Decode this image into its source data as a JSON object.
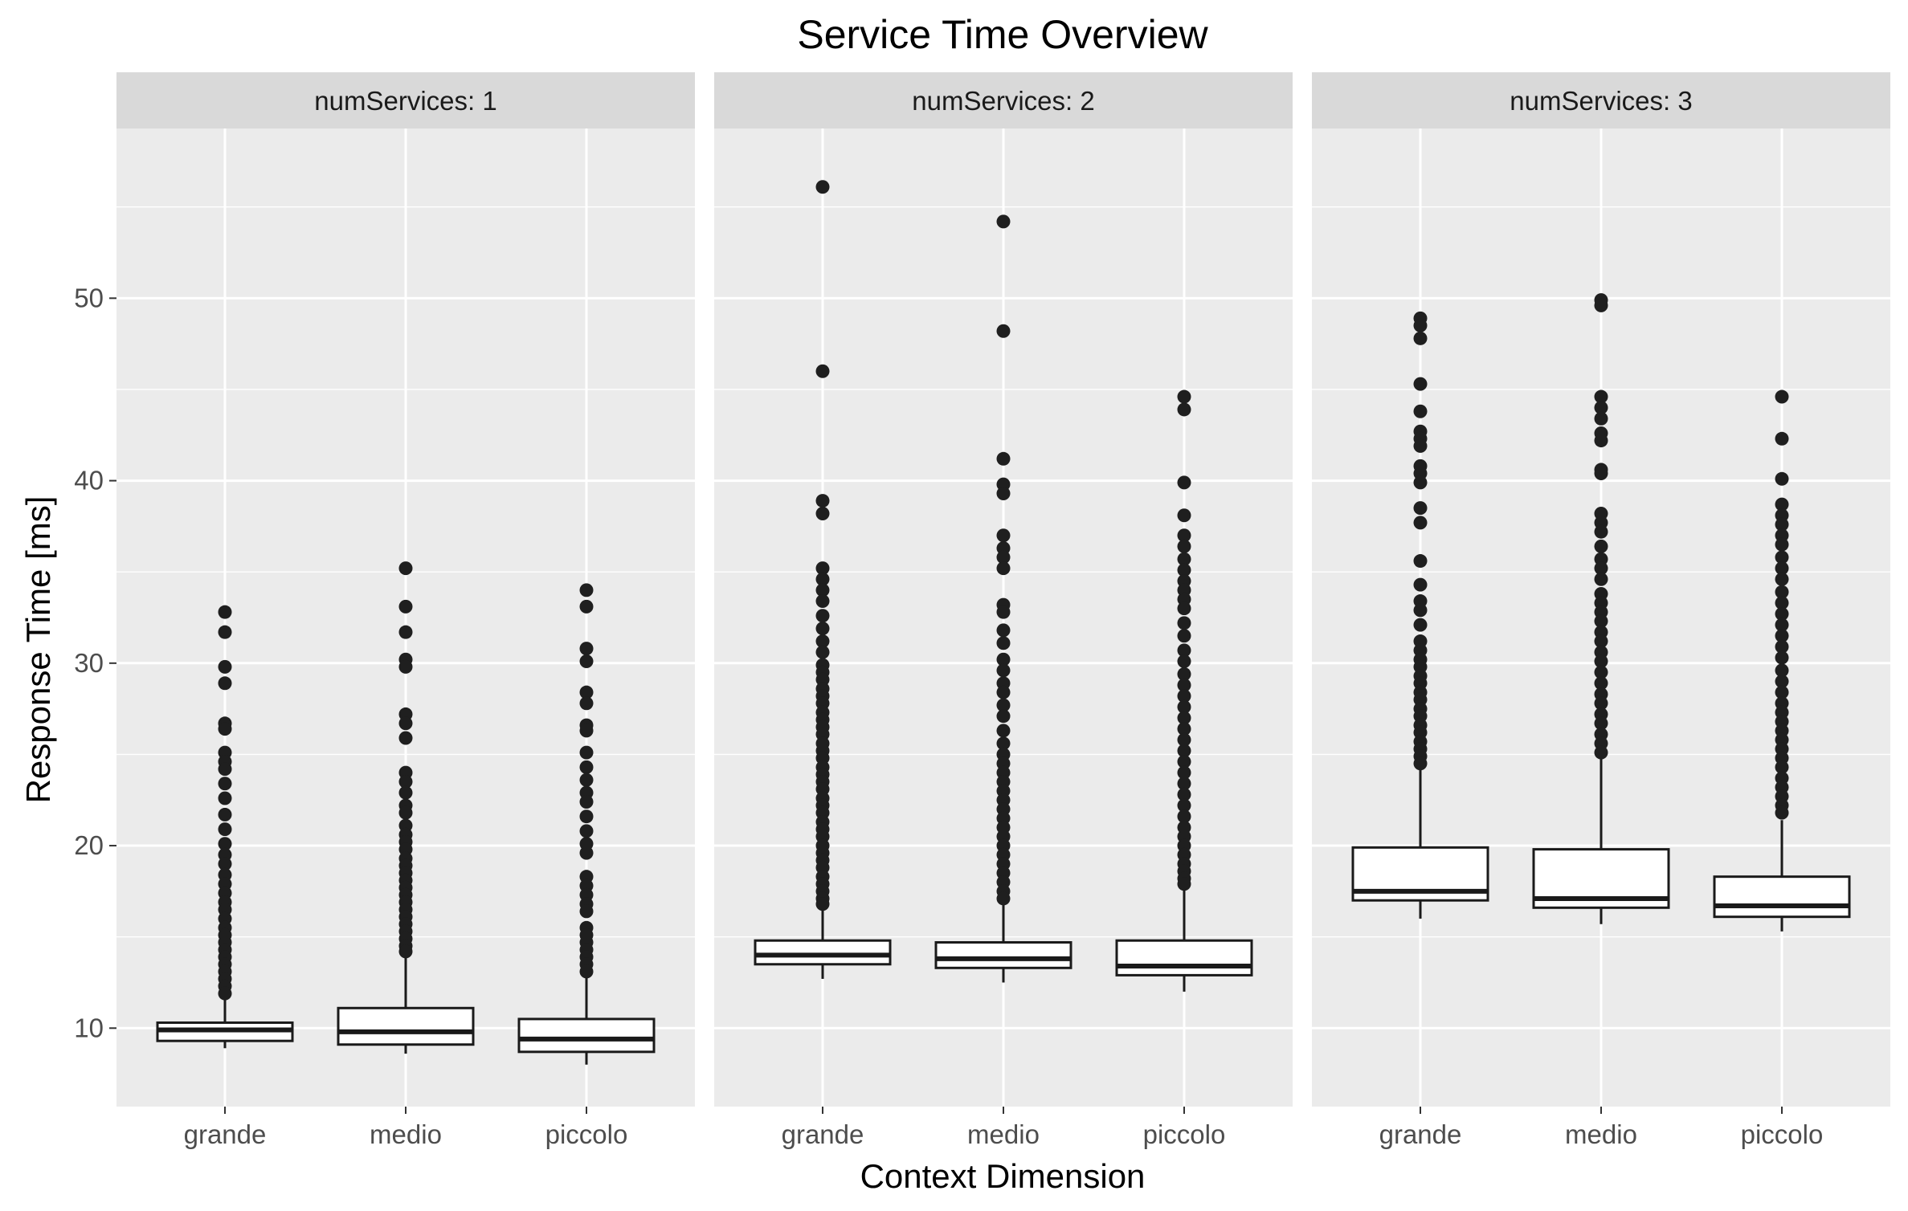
{
  "chart_data": {
    "type": "boxplot",
    "title": "Service Time Overview",
    "xlabel": "Context Dimension",
    "ylabel": "Response Time [ms]",
    "ylim": [
      5.7,
      59.3
    ],
    "yticks": [
      10,
      20,
      30,
      40,
      50
    ],
    "grid": true,
    "facet_label_prefix": "numServices: ",
    "categories": [
      "grande",
      "medio",
      "piccolo"
    ],
    "panels": [
      {
        "facet": "1",
        "boxes": [
          {
            "category": "grande",
            "whisker_low": 8.9,
            "q1": 9.3,
            "median": 9.9,
            "q3": 10.3,
            "whisker_high": 11.7,
            "outliers": [
              32.8,
              31.7,
              29.8,
              28.9,
              26.7,
              26.4,
              25.1,
              24.6,
              24.2,
              23.4,
              22.6,
              21.7,
              20.9,
              20.1,
              19.5,
              19.0,
              18.4,
              17.9,
              17.4,
              16.9,
              16.5,
              16.0,
              15.5,
              15.1,
              14.7,
              14.3,
              13.9,
              13.5,
              13.1,
              12.7,
              12.3,
              11.9
            ]
          },
          {
            "category": "medio",
            "whisker_low": 8.6,
            "q1": 9.1,
            "median": 9.8,
            "q3": 11.1,
            "whisker_high": 14.0,
            "outliers": [
              35.2,
              33.1,
              31.7,
              30.2,
              29.8,
              27.2,
              26.7,
              25.9,
              24.0,
              23.5,
              22.9,
              22.2,
              21.8,
              21.1,
              20.6,
              20.2,
              19.8,
              19.3,
              18.9,
              18.5,
              18.1,
              17.7,
              17.3,
              16.9,
              16.5,
              16.1,
              15.7,
              15.3,
              14.9,
              14.5,
              14.2
            ]
          },
          {
            "category": "piccolo",
            "whisker_low": 8.0,
            "q1": 8.7,
            "median": 9.4,
            "q3": 10.5,
            "whisker_high": 13.0,
            "outliers": [
              34.0,
              33.1,
              30.8,
              30.1,
              28.4,
              27.8,
              26.6,
              26.3,
              25.1,
              24.3,
              23.6,
              22.9,
              22.4,
              21.6,
              20.8,
              20.1,
              19.6,
              18.3,
              17.8,
              17.3,
              16.8,
              16.4,
              15.5,
              15.1,
              14.7,
              14.3,
              13.9,
              13.5,
              13.1
            ]
          }
        ]
      },
      {
        "facet": "2",
        "boxes": [
          {
            "category": "grande",
            "whisker_low": 12.7,
            "q1": 13.5,
            "median": 14.0,
            "q3": 14.8,
            "whisker_high": 16.6,
            "outliers": [
              56.1,
              46.0,
              38.9,
              38.2,
              35.2,
              34.6,
              34.0,
              33.4,
              32.6,
              31.9,
              31.2,
              30.6,
              29.9,
              29.5,
              29.1,
              28.6,
              28.2,
              27.8,
              27.3,
              26.9,
              26.5,
              26.1,
              25.6,
              25.2,
              24.8,
              24.3,
              23.9,
              23.5,
              23.1,
              22.6,
              22.2,
              21.8,
              21.3,
              20.9,
              20.5,
              20.0,
              19.6,
              19.2,
              18.8,
              18.3,
              17.9,
              17.5,
              17.1,
              16.8
            ]
          },
          {
            "category": "medio",
            "whisker_low": 12.5,
            "q1": 13.3,
            "median": 13.8,
            "q3": 14.7,
            "whisker_high": 16.9,
            "outliers": [
              54.2,
              48.2,
              41.2,
              39.8,
              39.3,
              37.0,
              36.3,
              35.8,
              35.2,
              33.2,
              32.8,
              31.8,
              31.1,
              30.2,
              29.6,
              28.9,
              28.4,
              27.7,
              27.1,
              26.3,
              25.6,
              25.0,
              24.5,
              24.0,
              23.5,
              23.0,
              22.5,
              22.0,
              21.5,
              21.0,
              20.5,
              20.0,
              19.5,
              19.0,
              18.5,
              18.0,
              17.5,
              17.1
            ]
          },
          {
            "category": "piccolo",
            "whisker_low": 12.0,
            "q1": 12.9,
            "median": 13.4,
            "q3": 14.8,
            "whisker_high": 17.9,
            "outliers": [
              44.6,
              43.9,
              39.9,
              38.1,
              37.0,
              36.4,
              35.7,
              35.1,
              34.5,
              34.0,
              33.5,
              33.0,
              32.2,
              31.5,
              30.7,
              30.1,
              29.4,
              28.8,
              28.2,
              27.6,
              27.0,
              26.4,
              25.8,
              25.2,
              24.6,
              24.0,
              23.4,
              22.8,
              22.2,
              21.6,
              21.0,
              20.5,
              20.0,
              19.5,
              19.0,
              18.6,
              18.2,
              17.9
            ]
          }
        ]
      },
      {
        "facet": "3",
        "boxes": [
          {
            "category": "grande",
            "whisker_low": 16.0,
            "q1": 17.0,
            "median": 17.5,
            "q3": 19.9,
            "whisker_high": 24.5,
            "outliers": [
              48.9,
              48.5,
              47.8,
              45.3,
              43.8,
              42.7,
              42.3,
              41.9,
              40.8,
              40.4,
              39.9,
              38.5,
              37.7,
              35.6,
              34.3,
              33.4,
              32.9,
              32.1,
              31.2,
              30.7,
              30.2,
              29.8,
              29.3,
              28.9,
              28.4,
              28.0,
              27.5,
              27.1,
              26.6,
              26.2,
              25.7,
              25.3,
              24.9,
              24.5
            ]
          },
          {
            "category": "medio",
            "whisker_low": 15.7,
            "q1": 16.6,
            "median": 17.1,
            "q3": 19.8,
            "whisker_high": 24.8,
            "outliers": [
              49.9,
              49.6,
              44.6,
              44.0,
              43.4,
              42.6,
              42.2,
              40.6,
              40.4,
              38.2,
              37.7,
              37.2,
              36.4,
              35.7,
              35.2,
              34.6,
              33.8,
              33.3,
              32.8,
              32.3,
              31.7,
              31.2,
              30.6,
              30.1,
              29.5,
              28.9,
              28.3,
              27.8,
              27.2,
              26.7,
              26.1,
              25.6,
              25.1
            ]
          },
          {
            "category": "piccolo",
            "whisker_low": 15.3,
            "q1": 16.1,
            "median": 16.7,
            "q3": 18.3,
            "whisker_high": 21.4,
            "outliers": [
              44.6,
              42.3,
              40.1,
              38.7,
              38.1,
              37.6,
              37.0,
              36.5,
              35.8,
              35.2,
              34.6,
              33.9,
              33.3,
              32.7,
              32.1,
              31.5,
              30.9,
              30.3,
              29.6,
              29.0,
              28.4,
              27.8,
              27.3,
              26.8,
              26.3,
              25.8,
              25.3,
              24.8,
              24.3,
              23.7,
              23.2,
              22.7,
              22.2,
              21.8
            ]
          }
        ]
      }
    ]
  }
}
